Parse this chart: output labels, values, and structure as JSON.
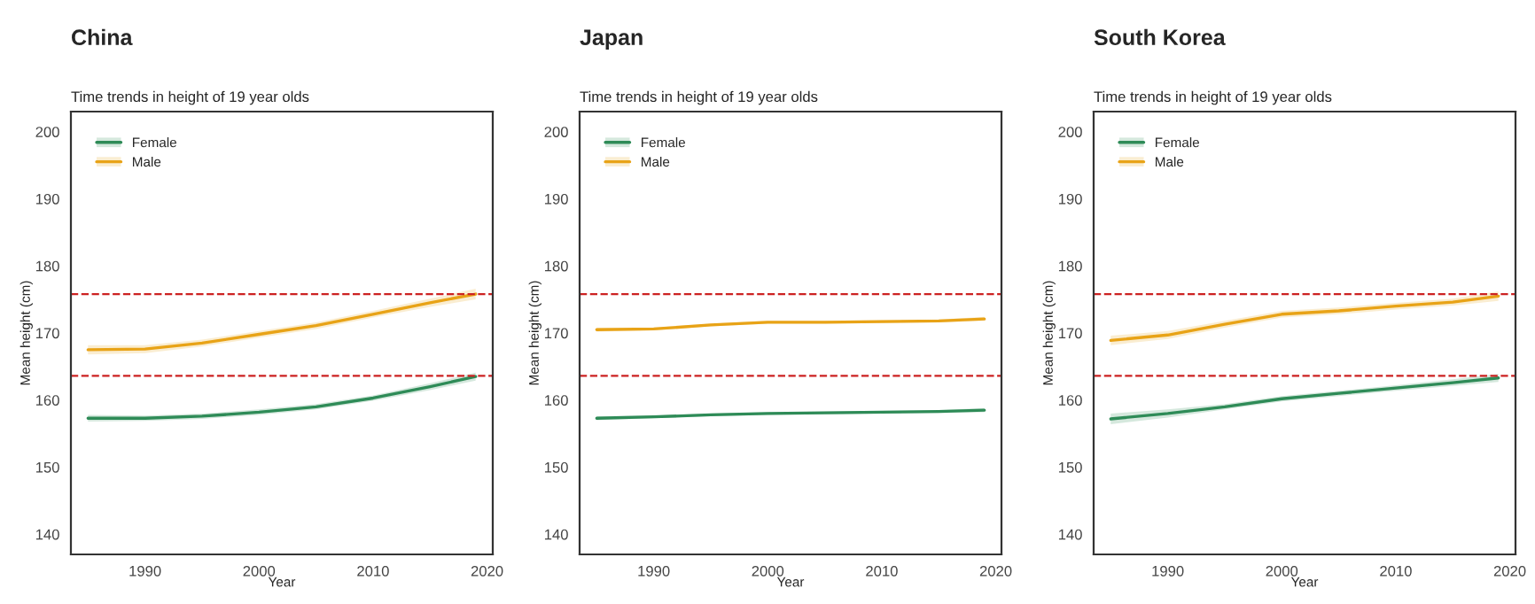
{
  "chart_data": [
    {
      "type": "line",
      "title": "China",
      "subtitle": "Time trends in height of 19 year olds",
      "xlabel": "Year",
      "ylabel": "Mean height (cm)",
      "x": [
        1985,
        1990,
        1995,
        2000,
        2005,
        2010,
        2015,
        2019
      ],
      "series": [
        {
          "name": "Female",
          "color": "#2e8b57",
          "values": [
            157.3,
            157.3,
            157.6,
            158.2,
            159.0,
            160.3,
            162.0,
            163.5
          ],
          "lower": [
            156.8,
            156.9,
            157.2,
            157.8,
            158.6,
            159.9,
            161.5,
            162.9
          ],
          "upper": [
            157.8,
            157.7,
            158.0,
            158.6,
            159.4,
            160.7,
            162.5,
            164.1
          ]
        },
        {
          "name": "Male",
          "color": "#e8a317",
          "values": [
            167.5,
            167.6,
            168.5,
            169.8,
            171.1,
            172.8,
            174.5,
            175.8
          ],
          "lower": [
            166.8,
            167.0,
            168.0,
            169.3,
            170.6,
            172.3,
            173.9,
            175.0
          ],
          "upper": [
            168.2,
            168.2,
            169.0,
            170.3,
            171.6,
            173.3,
            175.1,
            176.6
          ]
        }
      ],
      "xlim": [
        1983.5,
        2020.5
      ],
      "ylim": [
        137,
        203
      ],
      "xticks": [
        1990,
        2000,
        2010,
        2020
      ],
      "yticks": [
        140,
        150,
        160,
        170,
        180,
        190,
        200
      ],
      "ref_lines": [
        {
          "axis": "y",
          "value": 175.8,
          "color": "#cc2222",
          "line_style": "dashed"
        },
        {
          "axis": "y",
          "value": 163.6,
          "color": "#cc2222",
          "line_style": "dashed"
        }
      ],
      "legend": "top left",
      "grid": false,
      "line_style": "solid"
    },
    {
      "type": "line",
      "title": "Japan",
      "subtitle": "Time trends in height of 19 year olds",
      "xlabel": "Year",
      "ylabel": "Mean height (cm)",
      "x": [
        1985,
        1990,
        1995,
        2000,
        2005,
        2010,
        2015,
        2019
      ],
      "series": [
        {
          "name": "Female",
          "color": "#2e8b57",
          "values": [
            157.3,
            157.5,
            157.8,
            158.0,
            158.1,
            158.2,
            158.3,
            158.5
          ],
          "lower": [
            157.0,
            157.3,
            157.6,
            157.8,
            157.9,
            158.0,
            158.1,
            158.2
          ],
          "upper": [
            157.6,
            157.7,
            158.0,
            158.2,
            158.3,
            158.4,
            158.5,
            158.8
          ]
        },
        {
          "name": "Male",
          "color": "#e8a317",
          "values": [
            170.5,
            170.6,
            171.2,
            171.6,
            171.6,
            171.7,
            171.8,
            172.1
          ],
          "lower": [
            170.2,
            170.4,
            171.0,
            171.4,
            171.4,
            171.5,
            171.6,
            171.8
          ],
          "upper": [
            170.8,
            170.8,
            171.4,
            171.8,
            171.8,
            171.9,
            172.0,
            172.4
          ]
        }
      ],
      "xlim": [
        1983.5,
        2020.5
      ],
      "ylim": [
        137,
        203
      ],
      "xticks": [
        1990,
        2000,
        2010,
        2020
      ],
      "yticks": [
        140,
        150,
        160,
        170,
        180,
        190,
        200
      ],
      "ref_lines": [
        {
          "axis": "y",
          "value": 175.8,
          "color": "#cc2222",
          "line_style": "dashed"
        },
        {
          "axis": "y",
          "value": 163.6,
          "color": "#cc2222",
          "line_style": "dashed"
        }
      ],
      "legend": "top left",
      "grid": false,
      "line_style": "solid"
    },
    {
      "type": "line",
      "title": "South Korea",
      "subtitle": "Time trends in height of 19 year olds",
      "xlabel": "Year",
      "ylabel": "Mean height (cm)",
      "x": [
        1985,
        1990,
        1995,
        2000,
        2005,
        2010,
        2015,
        2019
      ],
      "series": [
        {
          "name": "Female",
          "color": "#2e8b57",
          "values": [
            157.2,
            158.0,
            159.0,
            160.2,
            161.0,
            161.8,
            162.6,
            163.3
          ],
          "lower": [
            156.4,
            157.4,
            158.6,
            159.8,
            160.6,
            161.4,
            162.1,
            162.7
          ],
          "upper": [
            158.0,
            158.6,
            159.4,
            160.6,
            161.4,
            162.2,
            163.1,
            163.9
          ]
        },
        {
          "name": "Male",
          "color": "#e8a317",
          "values": [
            168.9,
            169.7,
            171.3,
            172.8,
            173.3,
            174.0,
            174.6,
            175.5
          ],
          "lower": [
            168.2,
            169.1,
            170.8,
            172.3,
            172.8,
            173.5,
            174.1,
            174.8
          ],
          "upper": [
            169.6,
            170.3,
            171.8,
            173.3,
            173.8,
            174.5,
            175.1,
            176.2
          ]
        }
      ],
      "xlim": [
        1983.5,
        2020.5
      ],
      "ylim": [
        137,
        203
      ],
      "xticks": [
        1990,
        2000,
        2010,
        2020
      ],
      "yticks": [
        140,
        150,
        160,
        170,
        180,
        190,
        200
      ],
      "ref_lines": [
        {
          "axis": "y",
          "value": 175.8,
          "color": "#cc2222",
          "line_style": "dashed"
        },
        {
          "axis": "y",
          "value": 163.6,
          "color": "#cc2222",
          "line_style": "dashed"
        }
      ],
      "legend": "top left",
      "grid": false,
      "line_style": "solid"
    }
  ]
}
